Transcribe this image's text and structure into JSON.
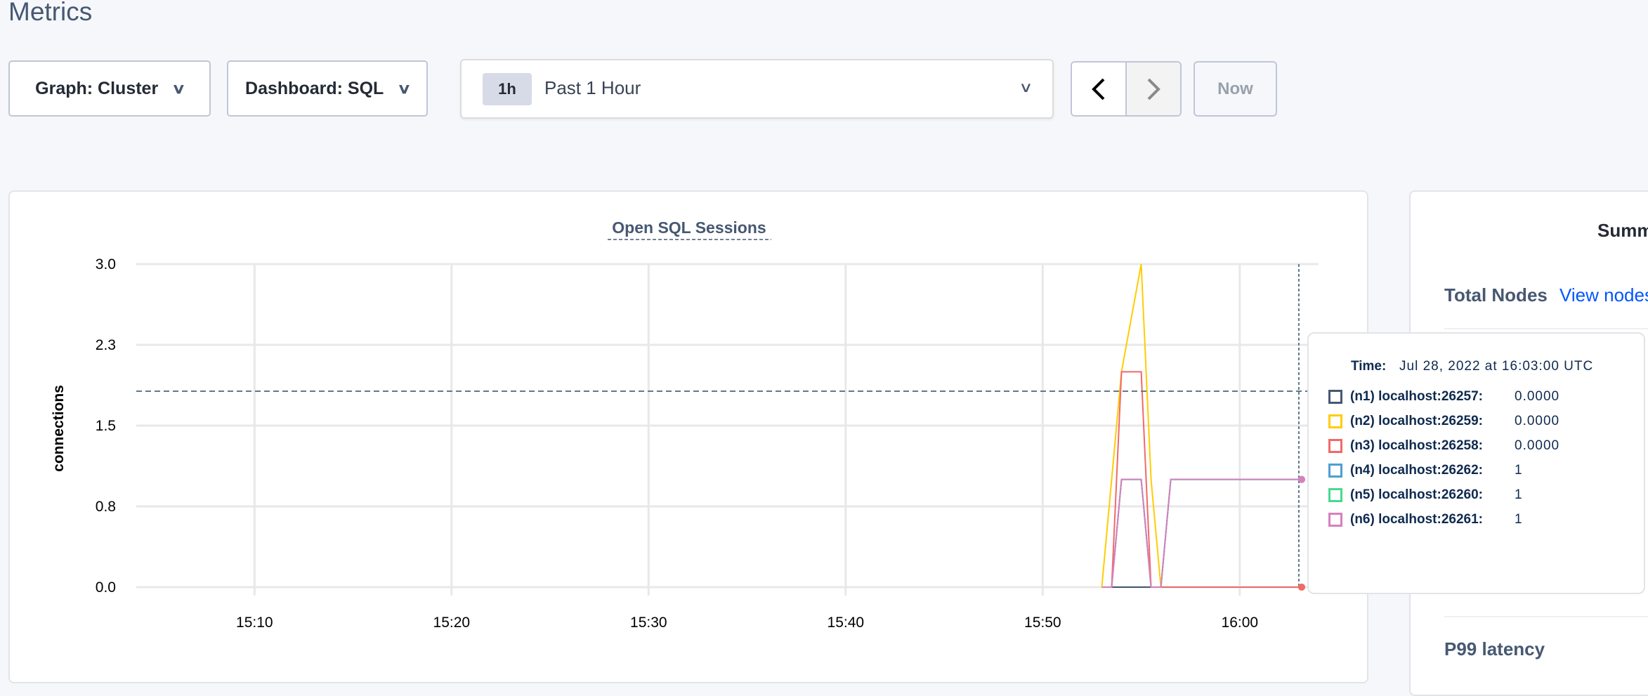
{
  "page": {
    "title": "Metrics"
  },
  "controls": {
    "graph_label": "Graph: Cluster",
    "dashboard_label": "Dashboard: SQL",
    "time_badge": "1h",
    "time_range": "Past 1 Hour",
    "now_label": "Now",
    "icons": {
      "dropdown": "chevron-down-icon",
      "prev": "chevron-left-icon",
      "next": "chevron-right-icon"
    }
  },
  "summary_panel": {
    "title": "Summ",
    "total_nodes_label": "Total Nodes",
    "view_nodes_link": "View nodes",
    "p99_label": "P99 latency"
  },
  "tooltip": {
    "time_label": "Time:",
    "time_value": "Jul 28, 2022 at 16:03:00 UTC",
    "rows": [
      {
        "label": "(n1) localhost:26257:",
        "value": "0.0000",
        "color": "#475872"
      },
      {
        "label": "(n2) localhost:26259:",
        "value": "0.0000",
        "color": "#ffcd02"
      },
      {
        "label": "(n3) localhost:26258:",
        "value": "0.0000",
        "color": "#f16969"
      },
      {
        "label": "(n4) localhost:26262:",
        "value": "1",
        "color": "#4e9fd1"
      },
      {
        "label": "(n5) localhost:26260:",
        "value": "1",
        "color": "#49d990"
      },
      {
        "label": "(n6) localhost:26261:",
        "value": "1",
        "color": "#d77fbf"
      }
    ]
  },
  "chart_data": {
    "type": "line",
    "title": "Open SQL Sessions",
    "ylabel": "connections",
    "xlabel": "",
    "xlim": [
      "15:04",
      "16:04"
    ],
    "ylim": [
      0,
      3
    ],
    "yticks": [
      0,
      0.75,
      1.5,
      2.25,
      3
    ],
    "ytick_labels": [
      "0.0",
      "0.8",
      "1.5",
      "2.3",
      "3.0"
    ],
    "xtick_labels": [
      "15:10",
      "15:20",
      "15:30",
      "15:40",
      "15:50",
      "16:00"
    ],
    "grid": true,
    "hover_time": "16:03",
    "series": [
      {
        "name": "(n1) localhost:26257",
        "color": "#475872",
        "points": [
          [
            "15:53",
            0
          ],
          [
            "16:03",
            0
          ]
        ]
      },
      {
        "name": "(n2) localhost:26259",
        "color": "#ffcd02",
        "points": [
          [
            "15:53",
            0
          ],
          [
            "15:54",
            2
          ],
          [
            "15:55",
            3
          ],
          [
            "15:55:30",
            1
          ],
          [
            "15:56",
            0
          ],
          [
            "16:03",
            0
          ]
        ]
      },
      {
        "name": "(n4) localhost:26262",
        "color": "#4e9fd1",
        "points": [
          [
            "15:53",
            0
          ],
          [
            "15:53:30",
            0
          ],
          [
            "15:54",
            1
          ],
          [
            "15:55",
            1
          ],
          [
            "15:55:30",
            0
          ],
          [
            "15:56",
            0
          ],
          [
            "15:56:30",
            1
          ],
          [
            "16:03",
            1
          ]
        ]
      },
      {
        "name": "(n5) localhost:26260",
        "color": "#49d990",
        "points": [
          [
            "15:53",
            0
          ],
          [
            "15:53:30",
            0
          ],
          [
            "15:54",
            1
          ],
          [
            "15:55",
            1
          ],
          [
            "15:55:30",
            0
          ],
          [
            "15:56",
            0
          ],
          [
            "15:56:30",
            1
          ],
          [
            "16:03",
            1
          ]
        ]
      },
      {
        "name": "(n3) localhost:26258",
        "color": "#f16969",
        "points": [
          [
            "15:53:30",
            0
          ],
          [
            "15:54",
            2
          ],
          [
            "15:55",
            2
          ],
          [
            "15:55:30",
            0
          ],
          [
            "16:03",
            0
          ]
        ]
      },
      {
        "name": "(n6) localhost:26261",
        "color": "#d77fbf",
        "points": [
          [
            "15:53",
            0
          ],
          [
            "15:53:30",
            0
          ],
          [
            "15:54",
            1
          ],
          [
            "15:55",
            1
          ],
          [
            "15:55:30",
            0
          ],
          [
            "15:56",
            0
          ],
          [
            "15:56:30",
            1
          ],
          [
            "16:03",
            1
          ]
        ]
      }
    ]
  }
}
